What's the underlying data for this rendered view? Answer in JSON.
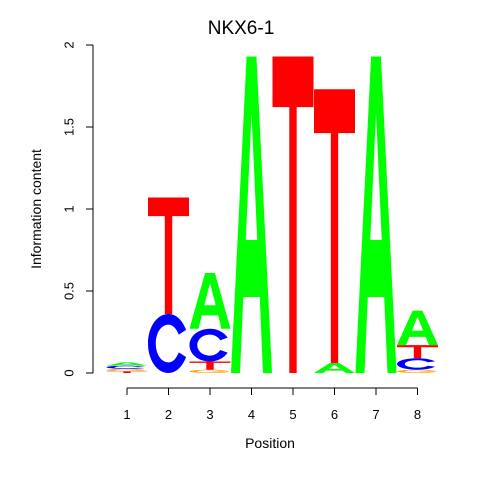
{
  "chart_data": {
    "type": "sequence_logo",
    "title": "NKX6-1",
    "xlabel": "Position",
    "ylabel": "Information content",
    "ylim": [
      0,
      2
    ],
    "y_ticks": [
      "0",
      "0.5",
      "1",
      "1.5",
      "2"
    ],
    "y_tick_values": [
      0,
      0.5,
      1,
      1.5,
      2
    ],
    "x_ticks": [
      "1",
      "2",
      "3",
      "4",
      "5",
      "6",
      "7",
      "8"
    ],
    "colors": {
      "A": "#00ff00",
      "C": "#0000ff",
      "G": "#ffa500",
      "T": "#ff0000"
    },
    "positions": [
      {
        "position": "1",
        "letters": [
          {
            "base": "T",
            "from": 0.0,
            "to": 0.01
          },
          {
            "base": "G",
            "from": 0.01,
            "to": 0.025
          },
          {
            "base": "C",
            "from": 0.025,
            "to": 0.045
          },
          {
            "base": "A",
            "from": 0.045,
            "to": 0.065
          }
        ]
      },
      {
        "position": "2",
        "letters": [
          {
            "base": "C",
            "from": 0.0,
            "to": 0.36
          },
          {
            "base": "T",
            "from": 0.36,
            "to": 1.07
          }
        ]
      },
      {
        "position": "3",
        "letters": [
          {
            "base": "G",
            "from": 0.0,
            "to": 0.02
          },
          {
            "base": "T",
            "from": 0.02,
            "to": 0.07
          },
          {
            "base": "C",
            "from": 0.07,
            "to": 0.27
          },
          {
            "base": "A",
            "from": 0.27,
            "to": 0.61
          }
        ]
      },
      {
        "position": "4",
        "letters": [
          {
            "base": "A",
            "from": 0.0,
            "to": 1.93
          }
        ]
      },
      {
        "position": "5",
        "letters": [
          {
            "base": "T",
            "from": 0.0,
            "to": 1.93
          }
        ]
      },
      {
        "position": "6",
        "letters": [
          {
            "base": "A",
            "from": 0.0,
            "to": 0.06
          },
          {
            "base": "T",
            "from": 0.06,
            "to": 1.73
          }
        ]
      },
      {
        "position": "7",
        "letters": [
          {
            "base": "A",
            "from": 0.0,
            "to": 1.93
          }
        ]
      },
      {
        "position": "8",
        "letters": [
          {
            "base": "G",
            "from": 0.0,
            "to": 0.02
          },
          {
            "base": "C",
            "from": 0.02,
            "to": 0.09
          },
          {
            "base": "T",
            "from": 0.09,
            "to": 0.17
          },
          {
            "base": "A",
            "from": 0.17,
            "to": 0.38
          }
        ]
      }
    ]
  }
}
